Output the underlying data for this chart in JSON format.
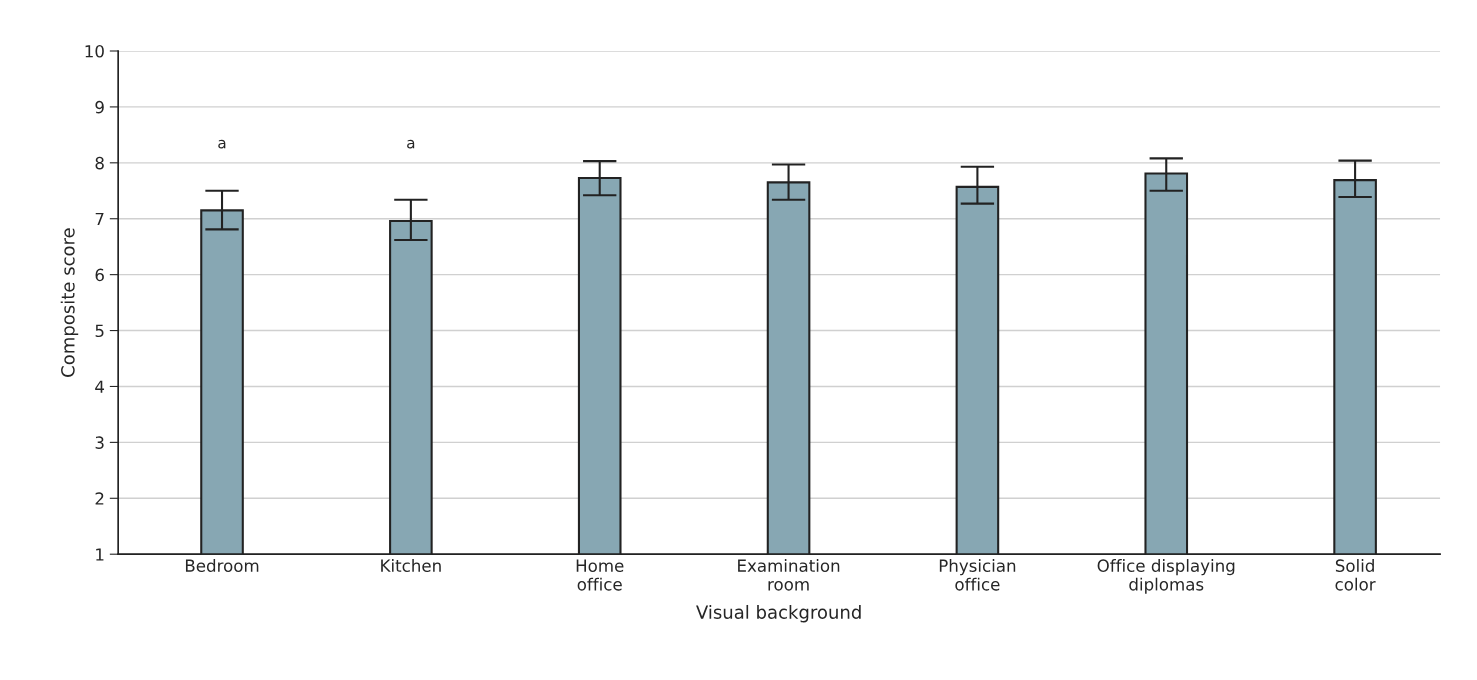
{
  "chart_data": {
    "type": "bar",
    "xlabel": "Visual background",
    "ylabel": "Composite score",
    "categories": [
      "Bedroom",
      "Kitchen",
      "Home\noffice",
      "Examination\nroom",
      "Physician\noffice",
      "Office displaying\ndiplomas",
      "Solid\ncolor"
    ],
    "values": [
      7.15,
      6.96,
      7.73,
      7.65,
      7.57,
      7.81,
      7.69
    ],
    "errors": [
      [
        6.81,
        7.5
      ],
      [
        6.62,
        7.34
      ],
      [
        7.42,
        8.03
      ],
      [
        7.34,
        7.97
      ],
      [
        7.27,
        7.93
      ],
      [
        7.5,
        8.08
      ],
      [
        7.39,
        8.04
      ]
    ],
    "color": "#87a7b3",
    "ylim": [
      1,
      10
    ],
    "yticks": [
      1,
      2,
      3,
      4,
      5,
      6,
      7,
      8,
      9,
      10
    ],
    "grid": "y",
    "legend": false,
    "annotations": [
      "a",
      "a"
    ]
  }
}
